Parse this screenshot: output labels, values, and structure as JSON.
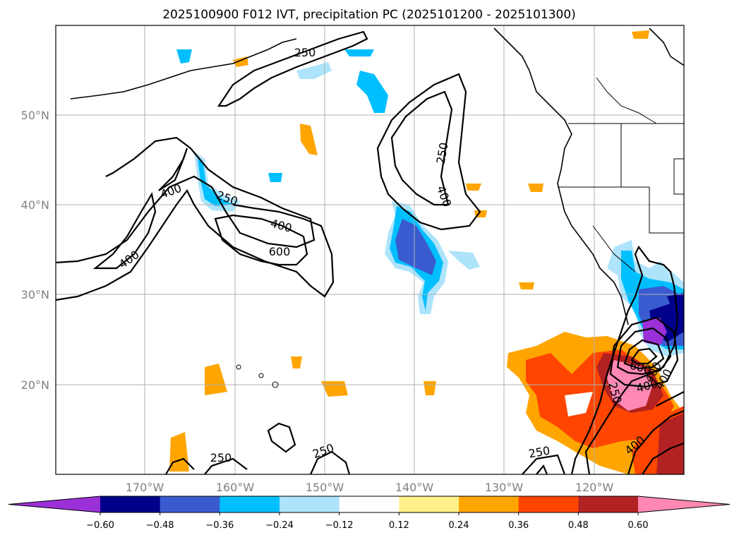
{
  "title": "2025100900 F012 IVT, precipitation PC (2025101200 - 2025101300)",
  "map": {
    "lat_labels": [
      "50°N",
      "40°N",
      "30°N",
      "20°N"
    ],
    "lon_labels": [
      "170°W",
      "160°W",
      "150°W",
      "140°W",
      "130°W",
      "120°W"
    ],
    "grid": true,
    "land_color": "#ffffff",
    "coastline_color": "#000000"
  },
  "contours": {
    "variable": "IVT",
    "labels": [
      "250",
      "250",
      "250",
      "250",
      "250",
      "250",
      "400",
      "400",
      "400",
      "400",
      "400",
      "400",
      "600",
      "600",
      "400",
      "250",
      "400"
    ]
  },
  "colorbar": {
    "ticks": [
      "−0.60",
      "−0.48",
      "−0.36",
      "−0.24",
      "−0.12",
      "0.12",
      "0.24",
      "0.36",
      "0.48",
      "0.60"
    ],
    "colors": [
      "#9b30d8",
      "#00008b",
      "#3a5bd0",
      "#00bfff",
      "#ade4fb",
      "#ffffff",
      "#fff08a",
      "#ffa500",
      "#ff4500",
      "#b22222",
      "#ff88b4"
    ]
  }
}
